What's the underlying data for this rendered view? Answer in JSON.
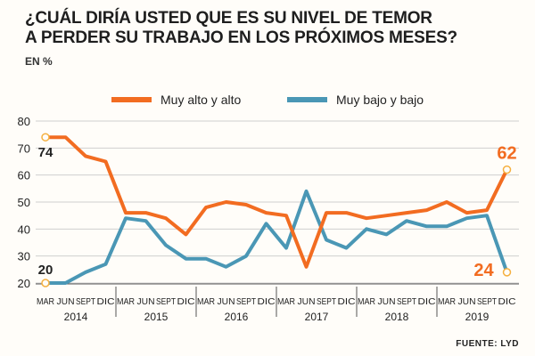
{
  "header": {
    "title_line1": "¿CUÁL DIRÍA USTED QUE ES SU NIVEL DE TEMOR",
    "title_line2": "A PERDER SU TRABAJO EN LOS PRÓXIMOS MESES?",
    "unit": "EN %"
  },
  "footer": {
    "source": "FUENTE: LYD"
  },
  "chart_data": {
    "type": "line",
    "title": "¿CUÁL DIRÍA USTED QUE ES SU NIVEL DE TEMOR A PERDER SU TRABAJO EN LOS PRÓXIMOS MESES?",
    "ylabel": "EN %",
    "ylim": [
      20,
      80
    ],
    "yticks": [
      20,
      30,
      40,
      50,
      60,
      70,
      80
    ],
    "legend_position": "top",
    "month_labels": [
      "MAR",
      "JUN",
      "SEPT",
      "DIC"
    ],
    "years": [
      "2014",
      "2015",
      "2016",
      "2017",
      "2018",
      "2019"
    ],
    "x": [
      "MAR 2014",
      "JUN 2014",
      "SEPT 2014",
      "DIC 2014",
      "MAR 2015",
      "JUN 2015",
      "SEPT 2015",
      "DIC 2015",
      "MAR 2016",
      "JUN 2016",
      "SEPT 2016",
      "DIC 2016",
      "MAR 2017",
      "JUN 2017",
      "SEPT 2017",
      "DIC 2017",
      "MAR 2018",
      "JUN 2018",
      "SEPT 2018",
      "DIC 2018",
      "MAR 2019",
      "JUN 2019",
      "SEPT 2019",
      "DIC 2019"
    ],
    "series": [
      {
        "name": "Muy alto y alto",
        "color": "#f26c21",
        "values": [
          74,
          74,
          67,
          65,
          46,
          46,
          44,
          38,
          48,
          50,
          49,
          46,
          45,
          26,
          46,
          46,
          44,
          45,
          46,
          47,
          50,
          46,
          47,
          62
        ],
        "labels": {
          "first": "74",
          "last": "62"
        }
      },
      {
        "name": "Muy bajo y bajo",
        "color": "#4a97b5",
        "values": [
          20,
          20,
          24,
          27,
          44,
          43,
          34,
          29,
          29,
          26,
          30,
          42,
          33,
          54,
          36,
          33,
          40,
          38,
          43,
          41,
          41,
          44,
          45,
          24
        ],
        "labels": {
          "first": "20",
          "last": "24"
        }
      }
    ]
  }
}
